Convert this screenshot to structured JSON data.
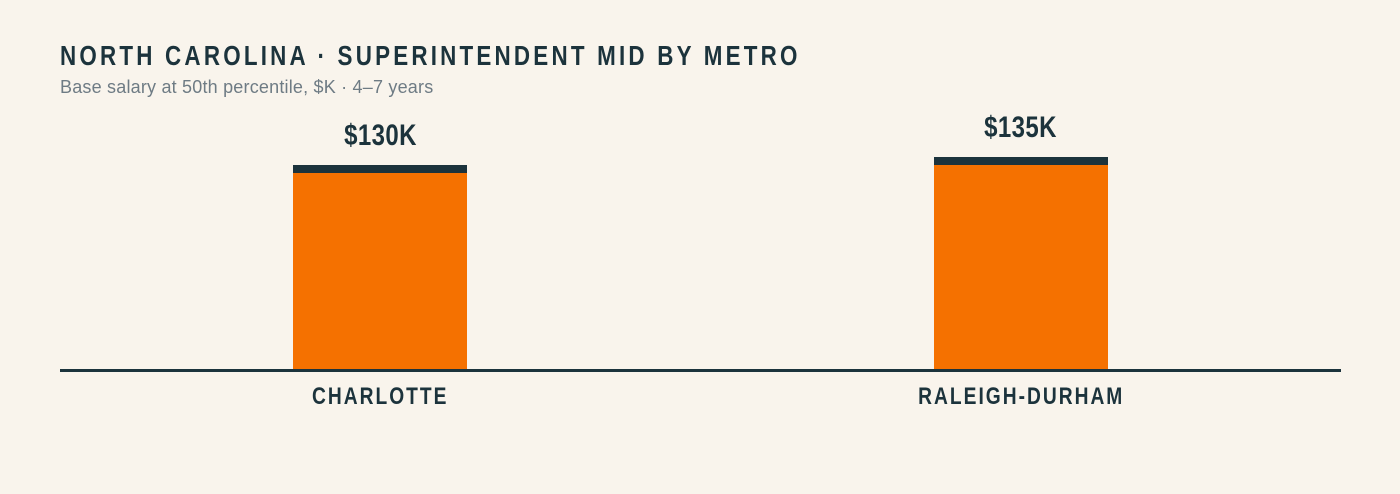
{
  "header": {
    "title": "NORTH CAROLINA · SUPERINTENDENT MID BY METRO",
    "subtitle": "Base salary at 50th percentile, $K · 4–7 years"
  },
  "chart_data": {
    "type": "bar",
    "title": "NORTH CAROLINA · SUPERINTENDENT MID BY METRO",
    "subtitle": "Base salary at 50th percentile, $K · 4–7 years",
    "categories": [
      "CHARLOTTE",
      "RALEIGH-DURHAM"
    ],
    "values": [
      130,
      135
    ],
    "value_labels": [
      "$130K",
      "$135K"
    ],
    "unit": "$K (thousands USD, base salary)",
    "ylim": [
      0,
      135
    ],
    "grid": false,
    "legend": false,
    "orientation": "vertical",
    "colors": {
      "background": "#F9F4EC",
      "bar": "#F57100",
      "bar_cap": "#1C333C",
      "ink": "#1C333C",
      "muted": "#6E7B84"
    }
  }
}
